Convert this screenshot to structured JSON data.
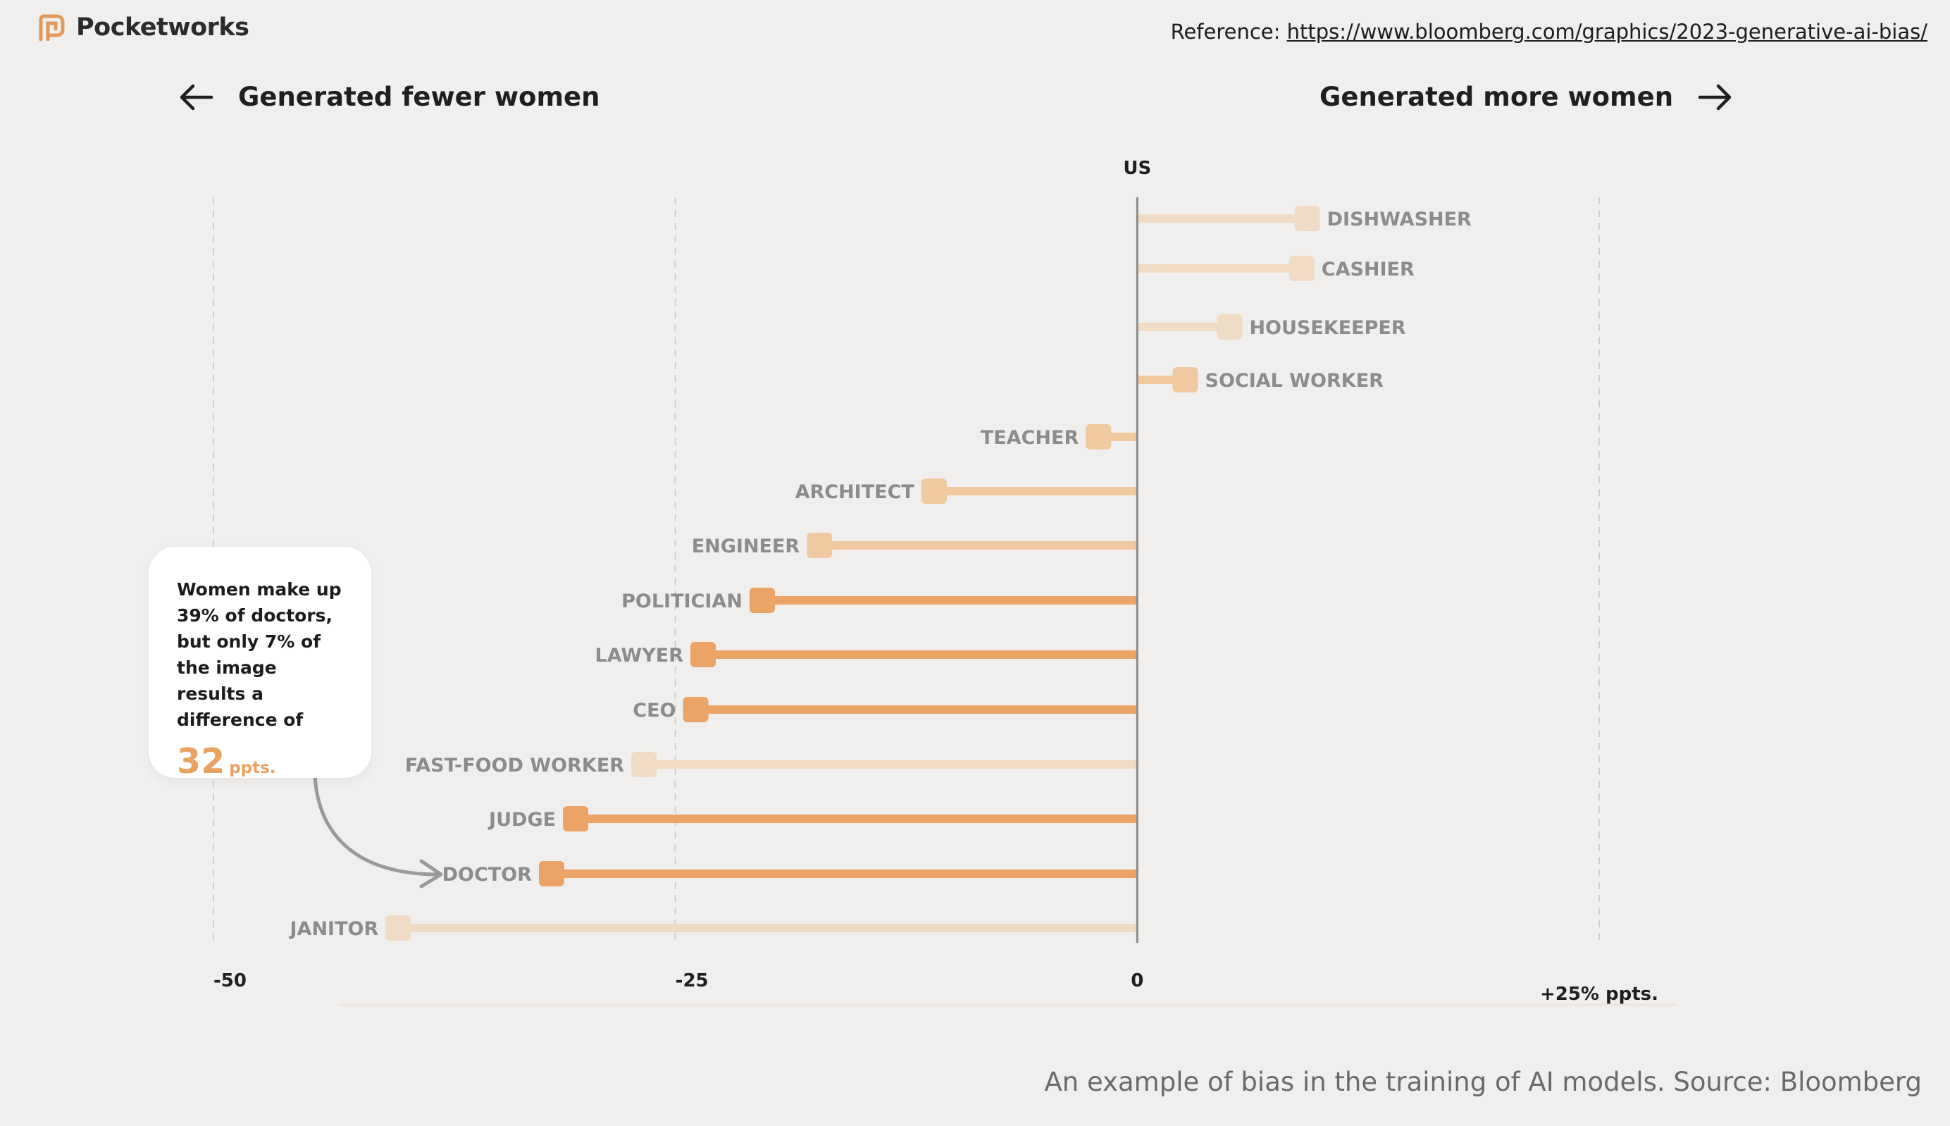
{
  "brand": {
    "name": "Pocketworks",
    "logo_icon": "pocketworks-logo-icon",
    "color": "#e29a58"
  },
  "reference": {
    "label": "Reference:",
    "url": "https://www.bloomberg.com/graphics/2023-generative-ai-bias/"
  },
  "directions": {
    "left_label": "Generated fewer women",
    "left_icon": "arrow-left-icon",
    "right_label": "Generated more women",
    "right_icon": "arrow-right-icon"
  },
  "callout": {
    "text": "Women make up 39% of doctors, but only 7% of the image results a difference of",
    "value": "32",
    "unit": "ppts.",
    "pointer_icon": "curved-arrow-icon"
  },
  "caption": "An example of bias in the training of AI models. Source: Bloomberg",
  "colors": {
    "background": "#f1efed",
    "strong": "#eba466",
    "medium": "#f1c9a1",
    "light": "#f0dcc4",
    "axis": "#8a8a8a",
    "grid": "#cfcfcf",
    "label": "#8c8c8c"
  },
  "chart_data": {
    "type": "lollipop",
    "xlim": [
      -50,
      25
    ],
    "ticks": [
      {
        "value": -50,
        "label": "-50"
      },
      {
        "value": -25,
        "label": "-25"
      },
      {
        "value": 0,
        "label": "0"
      },
      {
        "value": 25,
        "label": "+25% ppts."
      }
    ],
    "zero_label": "US",
    "grid": "dashed vertical",
    "categories": [
      "DISHWASHER",
      "CASHIER",
      "HOUSEKEEPER",
      "SOCIAL WORKER",
      "TEACHER",
      "ARCHITECT",
      "ENGINEER",
      "POLITICIAN",
      "LAWYER",
      "CEO",
      "FAST-FOOD WORKER",
      "JUDGE",
      "DOCTOR",
      "JANITOR"
    ],
    "values": [
      9.2,
      8.9,
      5.0,
      2.6,
      -2.1,
      -11.0,
      -17.2,
      -20.3,
      -23.5,
      -23.9,
      -26.7,
      -30.4,
      -31.7,
      -40.0
    ],
    "emphasis": [
      "light",
      "light",
      "light",
      "medium",
      "medium",
      "medium",
      "medium",
      "strong",
      "strong",
      "strong",
      "light",
      "strong",
      "strong",
      "light"
    ]
  }
}
